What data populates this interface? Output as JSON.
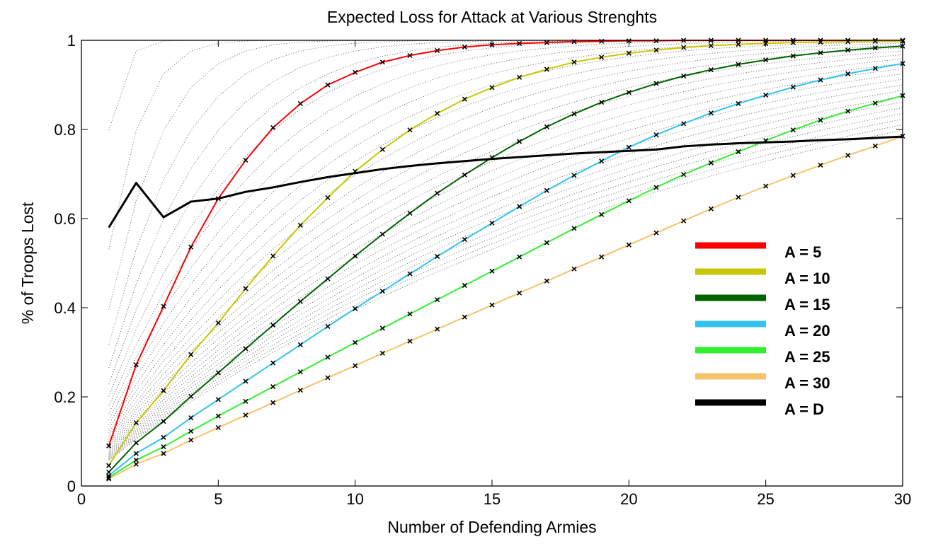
{
  "chart_data": {
    "type": "line",
    "title": "Expected Loss for Attack at Various Strenghts",
    "xlabel": "Number of Defending Armies",
    "ylabel": "% of Troops Lost",
    "xlim": [
      0,
      30
    ],
    "ylim": [
      0,
      1
    ],
    "xticks": [
      0,
      5,
      10,
      15,
      20,
      25,
      30
    ],
    "xtick_labels": [
      "0",
      "5",
      "10",
      "15",
      "20",
      "25",
      "30"
    ],
    "yticks": [
      0,
      0.2,
      0.4,
      0.6,
      0.8,
      1
    ],
    "ytick_labels": [
      "0",
      "0.2",
      "0.4",
      "0.6",
      "0.8",
      "1"
    ],
    "grid": false,
    "legend_position": "right",
    "background_curves": {
      "style": "dotted",
      "color": "#7a7a7a",
      "attacker_strengths": [
        1,
        2,
        3,
        4,
        5,
        6,
        7,
        8,
        9,
        10,
        11,
        12,
        13,
        14,
        15,
        16,
        17,
        18,
        19,
        20,
        21,
        22,
        23,
        24,
        25,
        26,
        27,
        28,
        29,
        30
      ]
    },
    "x": [
      1,
      2,
      3,
      4,
      5,
      6,
      7,
      8,
      9,
      10,
      11,
      12,
      13,
      14,
      15,
      16,
      17,
      18,
      19,
      20,
      21,
      22,
      23,
      24,
      25,
      26,
      27,
      28,
      29,
      30
    ],
    "series": [
      {
        "name": "A = 5",
        "color": "#ff0000",
        "markers": true,
        "values": [
          0.09,
          0.272,
          0.403,
          0.536,
          0.645,
          0.731,
          0.804,
          0.858,
          0.9,
          0.928,
          0.951,
          0.966,
          0.977,
          0.985,
          0.99,
          0.993,
          0.995,
          0.997,
          0.998,
          0.999,
          0.999,
          1.0,
          1.0,
          1.0,
          1.0,
          1.0,
          1.0,
          1.0,
          1.0,
          1.0
        ]
      },
      {
        "name": "A = 10",
        "color": "#c8c800",
        "markers": true,
        "values": [
          0.046,
          0.142,
          0.214,
          0.295,
          0.366,
          0.443,
          0.516,
          0.585,
          0.647,
          0.706,
          0.755,
          0.799,
          0.836,
          0.868,
          0.894,
          0.917,
          0.935,
          0.951,
          0.962,
          0.971,
          0.978,
          0.984,
          0.988,
          0.991,
          0.993,
          0.995,
          0.996,
          0.997,
          0.998,
          0.998
        ]
      },
      {
        "name": "A = 15",
        "color": "#006400",
        "markers": true,
        "values": [
          0.031,
          0.097,
          0.145,
          0.201,
          0.254,
          0.308,
          0.361,
          0.414,
          0.465,
          0.516,
          0.565,
          0.612,
          0.657,
          0.698,
          0.737,
          0.773,
          0.806,
          0.835,
          0.861,
          0.883,
          0.903,
          0.92,
          0.934,
          0.946,
          0.956,
          0.965,
          0.972,
          0.978,
          0.983,
          0.987
        ]
      },
      {
        "name": "A = 20",
        "color": "#33c3f0",
        "markers": true,
        "values": [
          0.023,
          0.073,
          0.109,
          0.153,
          0.194,
          0.235,
          0.276,
          0.317,
          0.358,
          0.398,
          0.437,
          0.476,
          0.515,
          0.553,
          0.59,
          0.627,
          0.663,
          0.697,
          0.729,
          0.76,
          0.788,
          0.813,
          0.837,
          0.858,
          0.877,
          0.895,
          0.911,
          0.925,
          0.937,
          0.948
        ]
      },
      {
        "name": "A = 25",
        "color": "#33ee33",
        "markers": true,
        "values": [
          0.019,
          0.058,
          0.088,
          0.123,
          0.157,
          0.19,
          0.223,
          0.256,
          0.289,
          0.322,
          0.354,
          0.386,
          0.418,
          0.45,
          0.482,
          0.514,
          0.546,
          0.578,
          0.609,
          0.64,
          0.67,
          0.699,
          0.725,
          0.75,
          0.775,
          0.799,
          0.821,
          0.841,
          0.859,
          0.876
        ]
      },
      {
        "name": "A = 30",
        "color": "#f5c36b",
        "markers": true,
        "values": [
          0.016,
          0.049,
          0.073,
          0.103,
          0.131,
          0.159,
          0.187,
          0.215,
          0.243,
          0.27,
          0.298,
          0.325,
          0.352,
          0.379,
          0.406,
          0.433,
          0.46,
          0.487,
          0.514,
          0.541,
          0.568,
          0.595,
          0.622,
          0.648,
          0.673,
          0.697,
          0.72,
          0.742,
          0.763,
          0.785
        ]
      },
      {
        "name": "A = D",
        "color": "#000000",
        "markers": false,
        "values": [
          0.58,
          0.68,
          0.603,
          0.638,
          0.645,
          0.66,
          0.67,
          0.682,
          0.693,
          0.702,
          0.711,
          0.718,
          0.724,
          0.729,
          0.734,
          0.738,
          0.742,
          0.746,
          0.749,
          0.752,
          0.755,
          0.762,
          0.766,
          0.769,
          0.771,
          0.773,
          0.776,
          0.778,
          0.781,
          0.784
        ]
      }
    ]
  }
}
